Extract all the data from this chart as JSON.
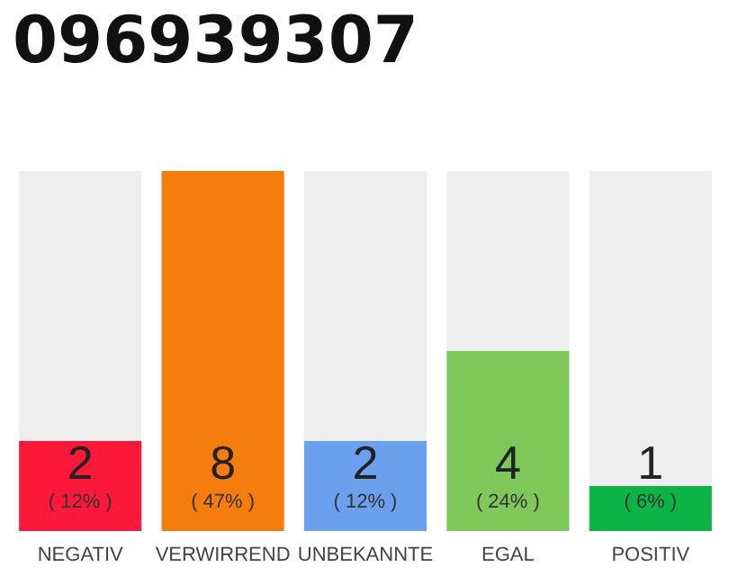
{
  "chart_data": {
    "type": "bar",
    "title": "096939307",
    "categories": [
      "NEGATIV",
      "VERWIRREND",
      "UNBEKANNTE",
      "EGAL",
      "POSITIV"
    ],
    "values": [
      2,
      8,
      2,
      4,
      1
    ],
    "colors": [
      "#fc1838",
      "#f47d0c",
      "#6aa0ec",
      "#7ec85a",
      "#0bb445"
    ],
    "value_labels": [
      "2\n( 12% )",
      "8\n( 47% )",
      "2\n( 12% )",
      "4\n( 24% )",
      "1\n( 6% )"
    ]
  }
}
